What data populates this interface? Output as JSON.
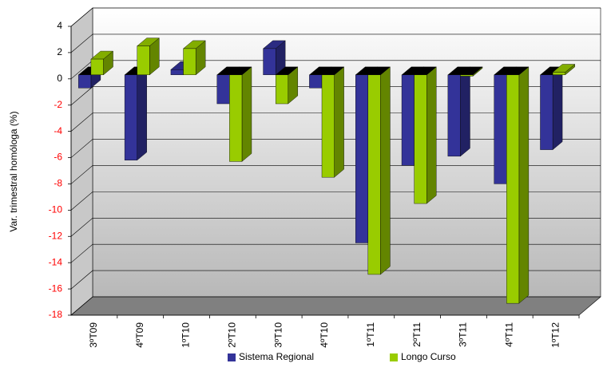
{
  "chart_data": {
    "type": "bar3d",
    "y_label": "Var. trimestral homóloga (%)",
    "categories": [
      "3ºT09",
      "4ºT09",
      "1ºT10",
      "2ºT10",
      "3ºT10",
      "4ºT10",
      "1ºT11",
      "2ºT11",
      "3ºT11",
      "4ºT11",
      "1ºT12"
    ],
    "series": [
      {
        "name": "Sistema Regional",
        "color": "#333399",
        "values": [
          -1.0,
          -6.5,
          0.4,
          -2.2,
          2.0,
          -1.0,
          -12.8,
          -6.9,
          -6.2,
          -8.3,
          -5.7
        ]
      },
      {
        "name": "Longo Curso",
        "color": "#99cc00",
        "values": [
          1.2,
          2.2,
          2.0,
          -6.6,
          -2.2,
          -7.8,
          -15.2,
          -9.8,
          -0.1,
          -17.4,
          0.2
        ]
      }
    ],
    "ylim": [
      -18,
      4
    ],
    "yticks": [
      4,
      2,
      0,
      -2,
      -4,
      -6,
      -8,
      -10,
      -12,
      -14,
      -16,
      -18
    ],
    "negative_tick_color": "#ff0000",
    "grid": true,
    "legend": "bottom"
  }
}
